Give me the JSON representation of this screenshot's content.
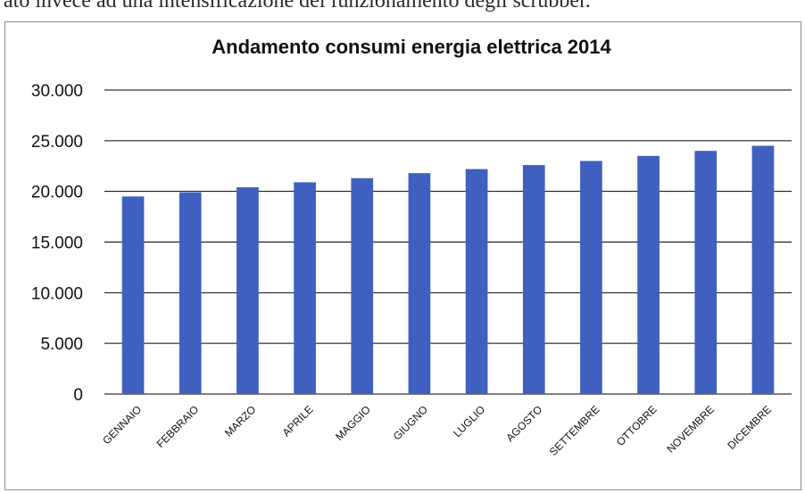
{
  "document": {
    "snippet_text": "ato invece ad una intensificazione del funzionamento degli scrubber."
  },
  "chart_data": {
    "type": "bar",
    "title": "Andamento consumi energia elettrica 2014",
    "xlabel": "",
    "ylabel": "",
    "categories": [
      "GENNAIO",
      "FEBBRAIO",
      "MARZO",
      "APRILE",
      "MAGGIO",
      "GIUGNO",
      "LUGLIO",
      "AGOSTO",
      "SETTEMBRE",
      "OTTOBRE",
      "NOVEMBRE",
      "DICEMBRE"
    ],
    "values": [
      19500,
      19900,
      20400,
      20900,
      21300,
      21800,
      22200,
      22600,
      23000,
      23500,
      24000,
      24500
    ],
    "ylim": [
      0,
      30000
    ],
    "y_ticks": [
      0,
      5000,
      10000,
      15000,
      20000,
      25000,
      30000
    ],
    "y_tick_labels": [
      "0",
      "5.000",
      "10.000",
      "15.000",
      "20.000",
      "25.000",
      "30.000"
    ],
    "grid": true,
    "legend": "none",
    "colors": {
      "bar": "#4060C0",
      "grid": "#000000",
      "frame": "#8c8c8c"
    }
  }
}
